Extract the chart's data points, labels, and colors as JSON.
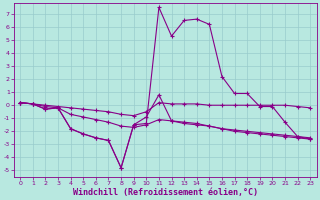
{
  "xlabel": "Windchill (Refroidissement éolien,°C)",
  "x_values": [
    0,
    1,
    2,
    3,
    4,
    5,
    6,
    7,
    8,
    9,
    10,
    11,
    12,
    13,
    14,
    15,
    16,
    17,
    18,
    19,
    20,
    21,
    22,
    23
  ],
  "series": [
    [
      0.2,
      0.1,
      -0.3,
      -0.2,
      -1.8,
      -2.2,
      -2.5,
      -2.7,
      -4.8,
      -1.5,
      -1.4,
      7.5,
      5.3,
      6.5,
      6.6,
      6.2,
      2.2,
      0.9,
      0.9,
      -0.1,
      -0.1,
      -1.3,
      -2.4,
      -2.5
    ],
    [
      0.2,
      0.1,
      -0.3,
      -0.2,
      -1.8,
      -2.2,
      -2.5,
      -2.7,
      -4.8,
      -1.5,
      -0.9,
      0.8,
      -1.2,
      -1.4,
      -1.5,
      -1.6,
      -1.8,
      -2.0,
      -2.1,
      -2.2,
      -2.3,
      -2.4,
      -2.5,
      -2.6
    ],
    [
      0.2,
      0.1,
      -0.1,
      -0.2,
      -0.7,
      -0.9,
      -1.1,
      -1.3,
      -1.6,
      -1.7,
      -1.5,
      -1.1,
      -1.2,
      -1.3,
      -1.4,
      -1.6,
      -1.8,
      -1.9,
      -2.0,
      -2.1,
      -2.2,
      -2.3,
      -2.4,
      -2.6
    ],
    [
      0.2,
      0.1,
      0.0,
      -0.1,
      -0.2,
      -0.3,
      -0.4,
      -0.5,
      -0.7,
      -0.8,
      -0.5,
      0.2,
      0.1,
      0.1,
      0.1,
      0.0,
      0.0,
      0.0,
      0.0,
      0.0,
      0.0,
      0.0,
      -0.1,
      -0.2
    ]
  ],
  "line_color": "#880088",
  "bg_color": "#b8e8e0",
  "grid_color": "#99cccc",
  "ylim": [
    -5.5,
    7.8
  ],
  "yticks": [
    -5,
    -4,
    -3,
    -2,
    -1,
    0,
    1,
    2,
    3,
    4,
    5,
    6,
    7
  ],
  "xlim": [
    -0.5,
    23.5
  ]
}
